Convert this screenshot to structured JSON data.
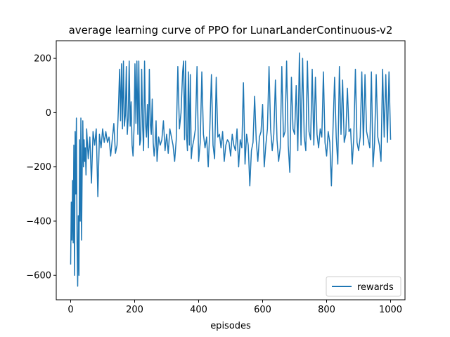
{
  "chart_data": {
    "type": "line",
    "title": "average learning curve of PPO for LunarLanderContinuous-v2",
    "xlabel": "episodes",
    "ylabel": "",
    "xlim": [
      -45,
      1045
    ],
    "ylim": [
      -690,
      265
    ],
    "xticks": [
      0,
      200,
      400,
      600,
      800,
      1000
    ],
    "yticks": [
      -600,
      -400,
      -200,
      0,
      200
    ],
    "xtick_labels": [
      "0",
      "200",
      "400",
      "600",
      "800",
      "1000"
    ],
    "ytick_labels": [
      "−600",
      "−400",
      "−200",
      "0",
      "200"
    ],
    "grid": false,
    "legend": {
      "position": "lower-right",
      "entries": [
        "rewards"
      ]
    },
    "series": [
      {
        "name": "rewards",
        "color": "#1f77b4",
        "x": [
          0,
          2,
          4,
          6,
          8,
          10,
          12,
          14,
          16,
          18,
          20,
          22,
          24,
          26,
          28,
          30,
          32,
          34,
          36,
          38,
          40,
          42,
          44,
          46,
          48,
          50,
          55,
          60,
          65,
          70,
          75,
          80,
          85,
          90,
          95,
          100,
          105,
          110,
          115,
          120,
          125,
          130,
          135,
          140,
          145,
          150,
          153,
          156,
          159,
          162,
          165,
          168,
          171,
          174,
          177,
          180,
          183,
          186,
          189,
          192,
          195,
          198,
          201,
          204,
          207,
          210,
          213,
          216,
          219,
          222,
          225,
          228,
          231,
          234,
          237,
          240,
          243,
          246,
          249,
          252,
          255,
          258,
          261,
          264,
          267,
          270,
          275,
          280,
          285,
          290,
          295,
          300,
          305,
          310,
          315,
          320,
          325,
          330,
          335,
          340,
          345,
          350,
          353,
          356,
          359,
          362,
          365,
          368,
          371,
          374,
          377,
          380,
          385,
          390,
          395,
          400,
          405,
          410,
          415,
          420,
          425,
          430,
          435,
          440,
          445,
          450,
          455,
          460,
          465,
          470,
          475,
          480,
          485,
          490,
          495,
          500,
          505,
          510,
          515,
          520,
          525,
          530,
          535,
          540,
          545,
          550,
          555,
          560,
          565,
          570,
          575,
          580,
          585,
          590,
          595,
          600,
          605,
          610,
          615,
          620,
          625,
          630,
          635,
          640,
          645,
          650,
          655,
          660,
          665,
          670,
          675,
          680,
          685,
          690,
          695,
          700,
          705,
          710,
          715,
          720,
          725,
          730,
          735,
          740,
          745,
          750,
          755,
          760,
          765,
          770,
          775,
          780,
          785,
          790,
          795,
          800,
          805,
          810,
          815,
          820,
          825,
          830,
          835,
          840,
          845,
          850,
          855,
          860,
          865,
          870,
          875,
          880,
          885,
          890,
          895,
          900,
          905,
          910,
          915,
          920,
          925,
          930,
          935,
          940,
          945,
          950,
          955,
          960,
          965,
          970,
          975,
          980,
          985,
          990,
          995,
          1000
        ],
        "y": [
          -560,
          -330,
          -470,
          -250,
          -480,
          -120,
          -600,
          -70,
          -300,
          -20,
          -480,
          -640,
          -380,
          -600,
          -100,
          -400,
          -20,
          -470,
          -220,
          -30,
          -200,
          -100,
          -180,
          -130,
          -230,
          -60,
          -170,
          -90,
          -260,
          -70,
          -120,
          -60,
          -310,
          -80,
          -130,
          -60,
          -110,
          -70,
          -110,
          -90,
          -160,
          -100,
          -40,
          -150,
          -120,
          40,
          160,
          -30,
          180,
          -60,
          190,
          -50,
          -10,
          170,
          -80,
          -20,
          190,
          -50,
          40,
          -120,
          -160,
          -60,
          180,
          -40,
          190,
          -80,
          190,
          -120,
          -100,
          160,
          -50,
          -140,
          190,
          -40,
          -90,
          30,
          -130,
          160,
          -40,
          -80,
          50,
          -110,
          -160,
          -120,
          -30,
          -180,
          -90,
          -120,
          -100,
          -30,
          -140,
          -80,
          -150,
          -60,
          -90,
          -120,
          -180,
          -100,
          170,
          -60,
          0,
          150,
          190,
          -100,
          190,
          -80,
          -140,
          150,
          -120,
          140,
          -170,
          -130,
          -100,
          -60,
          170,
          -180,
          -110,
          150,
          -80,
          -130,
          -90,
          -200,
          -60,
          140,
          -120,
          -170,
          130,
          -90,
          -80,
          -130,
          -70,
          -180,
          -120,
          -100,
          -110,
          -160,
          -80,
          -120,
          -140,
          -60,
          -200,
          -100,
          -130,
          110,
          -190,
          -80,
          -120,
          -270,
          -140,
          -110,
          60,
          -100,
          -180,
          -90,
          -70,
          30,
          -200,
          -120,
          -60,
          170,
          -60,
          -140,
          -80,
          120,
          -100,
          -180,
          -130,
          170,
          -90,
          -70,
          190,
          -120,
          -220,
          130,
          -60,
          -80,
          100,
          -140,
          220,
          -120,
          200,
          -90,
          -140,
          190,
          -70,
          -100,
          160,
          -120,
          130,
          -80,
          -130,
          -60,
          -90,
          150,
          -110,
          -160,
          -70,
          -110,
          -270,
          -60,
          130,
          -90,
          -190,
          170,
          -80,
          120,
          -110,
          -80,
          90,
          -70,
          -60,
          -190,
          -90,
          160,
          -110,
          -140,
          -90,
          150,
          -120,
          140,
          -70,
          -100,
          -130,
          150,
          -200,
          -110,
          140,
          -90,
          -120,
          -180,
          160,
          -90,
          140,
          -110,
          150,
          -100
        ]
      }
    ]
  }
}
